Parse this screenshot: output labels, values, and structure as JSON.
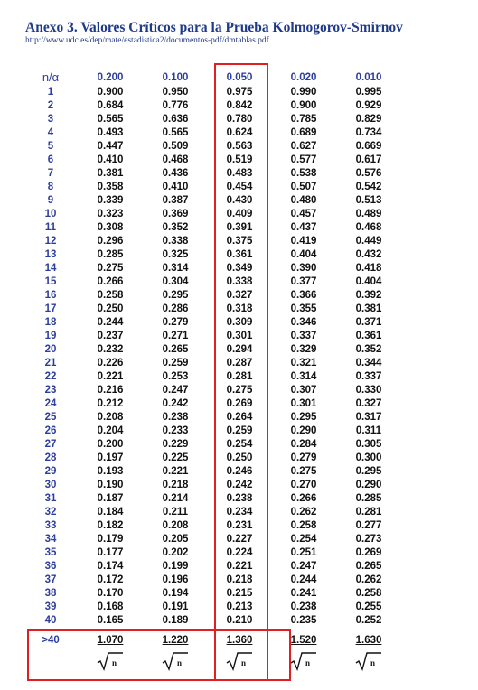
{
  "header": {
    "title": "Anexo 3. Valores Críticos para la Prueba Kolmogorov-Smirnov",
    "url": "http://www.udc.es/dep/mate/estadistica2/documentos-pdf/dmtablas.pdf"
  },
  "table": {
    "corner": "n/α",
    "alphas": [
      "0.200",
      "0.100",
      "0.050",
      "0.020",
      "0.010"
    ],
    "rows": [
      {
        "n": "1",
        "v": [
          "0.900",
          "0.950",
          "0.975",
          "0.990",
          "0.995"
        ]
      },
      {
        "n": "2",
        "v": [
          "0.684",
          "0.776",
          "0.842",
          "0.900",
          "0.929"
        ]
      },
      {
        "n": "3",
        "v": [
          "0.565",
          "0.636",
          "0.780",
          "0.785",
          "0.829"
        ]
      },
      {
        "n": "4",
        "v": [
          "0.493",
          "0.565",
          "0.624",
          "0.689",
          "0.734"
        ]
      },
      {
        "n": "5",
        "v": [
          "0.447",
          "0.509",
          "0.563",
          "0.627",
          "0.669"
        ]
      },
      {
        "n": "6",
        "v": [
          "0.410",
          "0.468",
          "0.519",
          "0.577",
          "0.617"
        ]
      },
      {
        "n": "7",
        "v": [
          "0.381",
          "0.436",
          "0.483",
          "0.538",
          "0.576"
        ]
      },
      {
        "n": "8",
        "v": [
          "0.358",
          "0.410",
          "0.454",
          "0.507",
          "0.542"
        ]
      },
      {
        "n": "9",
        "v": [
          "0.339",
          "0.387",
          "0.430",
          "0.480",
          "0.513"
        ]
      },
      {
        "n": "10",
        "v": [
          "0.323",
          "0.369",
          "0.409",
          "0.457",
          "0.489"
        ]
      },
      {
        "n": "11",
        "v": [
          "0.308",
          "0.352",
          "0.391",
          "0.437",
          "0.468"
        ]
      },
      {
        "n": "12",
        "v": [
          "0.296",
          "0.338",
          "0.375",
          "0.419",
          "0.449"
        ]
      },
      {
        "n": "13",
        "v": [
          "0.285",
          "0.325",
          "0.361",
          "0.404",
          "0.432"
        ]
      },
      {
        "n": "14",
        "v": [
          "0.275",
          "0.314",
          "0.349",
          "0.390",
          "0.418"
        ]
      },
      {
        "n": "15",
        "v": [
          "0.266",
          "0.304",
          "0.338",
          "0.377",
          "0.404"
        ]
      },
      {
        "n": "16",
        "v": [
          "0.258",
          "0.295",
          "0.327",
          "0.366",
          "0.392"
        ]
      },
      {
        "n": "17",
        "v": [
          "0.250",
          "0.286",
          "0.318",
          "0.355",
          "0.381"
        ]
      },
      {
        "n": "18",
        "v": [
          "0.244",
          "0.279",
          "0.309",
          "0.346",
          "0.371"
        ]
      },
      {
        "n": "19",
        "v": [
          "0.237",
          "0.271",
          "0.301",
          "0.337",
          "0.361"
        ]
      },
      {
        "n": "20",
        "v": [
          "0.232",
          "0.265",
          "0.294",
          "0.329",
          "0.352"
        ]
      },
      {
        "n": "21",
        "v": [
          "0.226",
          "0.259",
          "0.287",
          "0.321",
          "0.344"
        ]
      },
      {
        "n": "22",
        "v": [
          "0.221",
          "0.253",
          "0.281",
          "0.314",
          "0.337"
        ]
      },
      {
        "n": "23",
        "v": [
          "0.216",
          "0.247",
          "0.275",
          "0.307",
          "0.330"
        ]
      },
      {
        "n": "24",
        "v": [
          "0.212",
          "0.242",
          "0.269",
          "0.301",
          "0.327"
        ]
      },
      {
        "n": "25",
        "v": [
          "0.208",
          "0.238",
          "0.264",
          "0.295",
          "0.317"
        ]
      },
      {
        "n": "26",
        "v": [
          "0.204",
          "0.233",
          "0.259",
          "0.290",
          "0.311"
        ]
      },
      {
        "n": "27",
        "v": [
          "0.200",
          "0.229",
          "0.254",
          "0.284",
          "0.305"
        ]
      },
      {
        "n": "28",
        "v": [
          "0.197",
          "0.225",
          "0.250",
          "0.279",
          "0.300"
        ]
      },
      {
        "n": "29",
        "v": [
          "0.193",
          "0.221",
          "0.246",
          "0.275",
          "0.295"
        ]
      },
      {
        "n": "30",
        "v": [
          "0.190",
          "0.218",
          "0.242",
          "0.270",
          "0.290"
        ]
      },
      {
        "n": "31",
        "v": [
          "0.187",
          "0.214",
          "0.238",
          "0.266",
          "0.285"
        ]
      },
      {
        "n": "32",
        "v": [
          "0.184",
          "0.211",
          "0.234",
          "0.262",
          "0.281"
        ]
      },
      {
        "n": "33",
        "v": [
          "0.182",
          "0.208",
          "0.231",
          "0.258",
          "0.277"
        ]
      },
      {
        "n": "34",
        "v": [
          "0.179",
          "0.205",
          "0.227",
          "0.254",
          "0.273"
        ]
      },
      {
        "n": "35",
        "v": [
          "0.177",
          "0.202",
          "0.224",
          "0.251",
          "0.269"
        ]
      },
      {
        "n": "36",
        "v": [
          "0.174",
          "0.199",
          "0.221",
          "0.247",
          "0.265"
        ]
      },
      {
        "n": "37",
        "v": [
          "0.172",
          "0.196",
          "0.218",
          "0.244",
          "0.262"
        ]
      },
      {
        "n": "38",
        "v": [
          "0.170",
          "0.194",
          "0.215",
          "0.241",
          "0.258"
        ]
      },
      {
        "n": "39",
        "v": [
          "0.168",
          "0.191",
          "0.213",
          "0.238",
          "0.255"
        ]
      },
      {
        "n": "40",
        "v": [
          "0.165",
          "0.189",
          "0.210",
          "0.235",
          "0.252"
        ]
      }
    ],
    "large_n": {
      "n": ">40",
      "v": [
        "1.070",
        "1.220",
        "1.360",
        "1.520",
        "1.630"
      ],
      "denominator_symbol": "√n"
    }
  },
  "colors": {
    "heading_blue": "#1f3a8a",
    "index_blue": "#2c3e9e",
    "highlight_red": "#e02020"
  }
}
